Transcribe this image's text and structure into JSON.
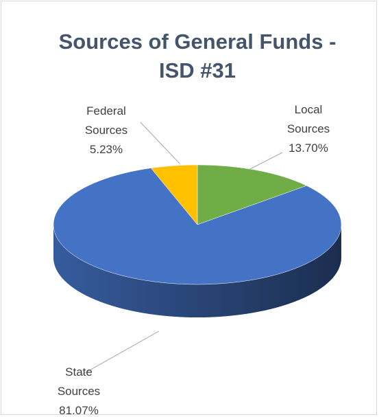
{
  "chart_data": {
    "type": "pie3d",
    "title": "Sources of General Funds - ISD #31",
    "categories": [
      "Local Sources",
      "State Sources",
      "Federal Sources"
    ],
    "values": [
      13.7,
      81.07,
      5.23
    ],
    "value_labels": [
      "13.70%",
      "81.07%",
      "5.23%"
    ],
    "colors": [
      "#70ad47",
      "#4472c4",
      "#ffc000"
    ]
  }
}
